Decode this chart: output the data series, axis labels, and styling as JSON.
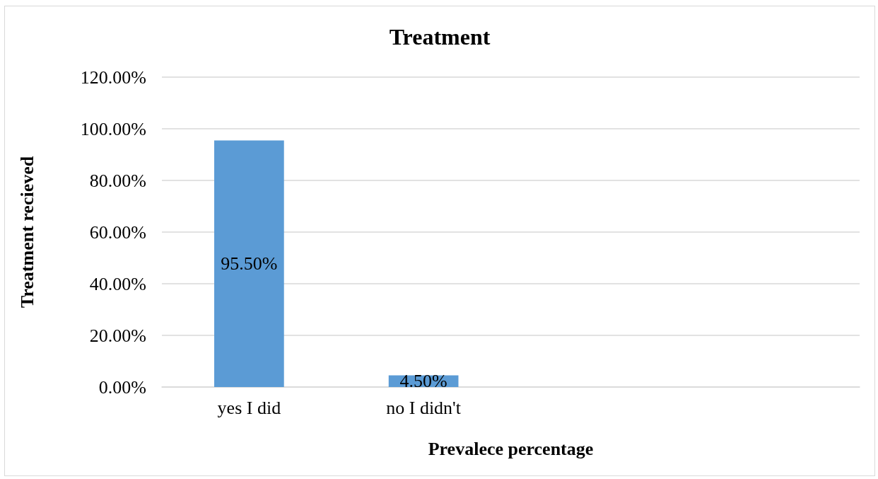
{
  "chart_data": {
    "type": "bar",
    "title": "Treatment",
    "xlabel": "Prevalece percentage",
    "ylabel": "Treatment recieved",
    "categories": [
      "yes I did",
      "no I didn't",
      null,
      null
    ],
    "values": [
      95.5,
      4.5,
      null,
      null
    ],
    "value_labels": [
      "95.50%",
      "4.50%",
      null,
      null
    ],
    "color": "#5b9bd5",
    "ylim": [
      0,
      120
    ],
    "yticks": [
      {
        "value": 0,
        "label": "0.00%"
      },
      {
        "value": 20,
        "label": "20.00%"
      },
      {
        "value": 40,
        "label": "40.00%"
      },
      {
        "value": 60,
        "label": "60.00%"
      },
      {
        "value": 80,
        "label": "80.00%"
      },
      {
        "value": 100,
        "label": "100.00%"
      },
      {
        "value": 120,
        "label": "120.00%"
      }
    ],
    "grid": "y"
  }
}
